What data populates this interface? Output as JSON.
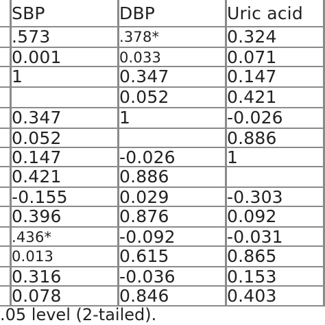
{
  "headers": [
    "SBP",
    "DBP",
    "Uric acid"
  ],
  "rows": [
    [
      ".573",
      ".378*",
      "0.324"
    ],
    [
      "0.001",
      "0.033",
      "0.071"
    ],
    [
      "1",
      "0.347",
      "0.147"
    ],
    [
      "",
      "0.052",
      "0.421"
    ],
    [
      "0.347",
      "1",
      "-0.026"
    ],
    [
      "0.052",
      "",
      "0.886"
    ],
    [
      "0.147",
      "-0.026",
      "1"
    ],
    [
      "0.421",
      "0.886",
      ""
    ],
    [
      "-0.155",
      "0.029",
      "-0.303"
    ],
    [
      "0.396",
      "0.876",
      "0.092"
    ],
    [
      ".436*",
      "-0.092",
      "-0.031"
    ],
    [
      "0.013",
      "0.615",
      "0.865"
    ],
    [
      "0.316",
      "-0.036",
      "0.153"
    ],
    [
      "0.078",
      "0.846",
      "0.403"
    ]
  ],
  "footnote": ".05 level (2-tailed)."
}
